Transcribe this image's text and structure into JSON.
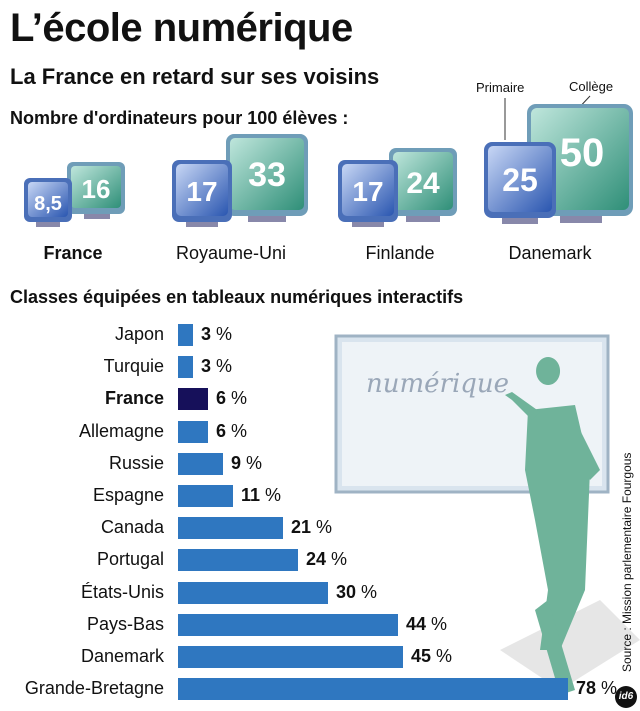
{
  "title": "L’école numérique",
  "subtitle": "La France en retard sur ses voisins",
  "computers": {
    "heading": "Nombre d'ordinateurs pour 100 élèves :",
    "legend": {
      "primary": "Primaire",
      "secondary": "Collège"
    },
    "countries": [
      {
        "name": "France",
        "primary": "8,5",
        "secondary": "16",
        "highlight": true
      },
      {
        "name": "Royaume-Uni",
        "primary": "17",
        "secondary": "33",
        "highlight": false
      },
      {
        "name": "Finlande",
        "primary": "17",
        "secondary": "24",
        "highlight": false
      },
      {
        "name": "Danemark",
        "primary": "25",
        "secondary": "50",
        "highlight": false
      }
    ]
  },
  "chart_data": {
    "type": "bar",
    "orientation": "horizontal",
    "title": "Classes équipées en tableaux numériques interactifs",
    "unit": "%",
    "categories": [
      "Japon",
      "Turquie",
      "France",
      "Allemagne",
      "Russie",
      "Espagne",
      "Canada",
      "Portugal",
      "États-Unis",
      "Pays-Bas",
      "Danemark",
      "Grande-Bretagne"
    ],
    "values": [
      3,
      3,
      6,
      6,
      9,
      11,
      21,
      24,
      30,
      44,
      45,
      78
    ],
    "highlight": "France",
    "colors": {
      "bar": "#2f77c0",
      "highlight": "#16105a"
    },
    "xlim": [
      0,
      80
    ]
  },
  "illustration": {
    "board_text": "numérique"
  },
  "source": "Source : Mission parlementaire Fourgous",
  "logo": "id6"
}
